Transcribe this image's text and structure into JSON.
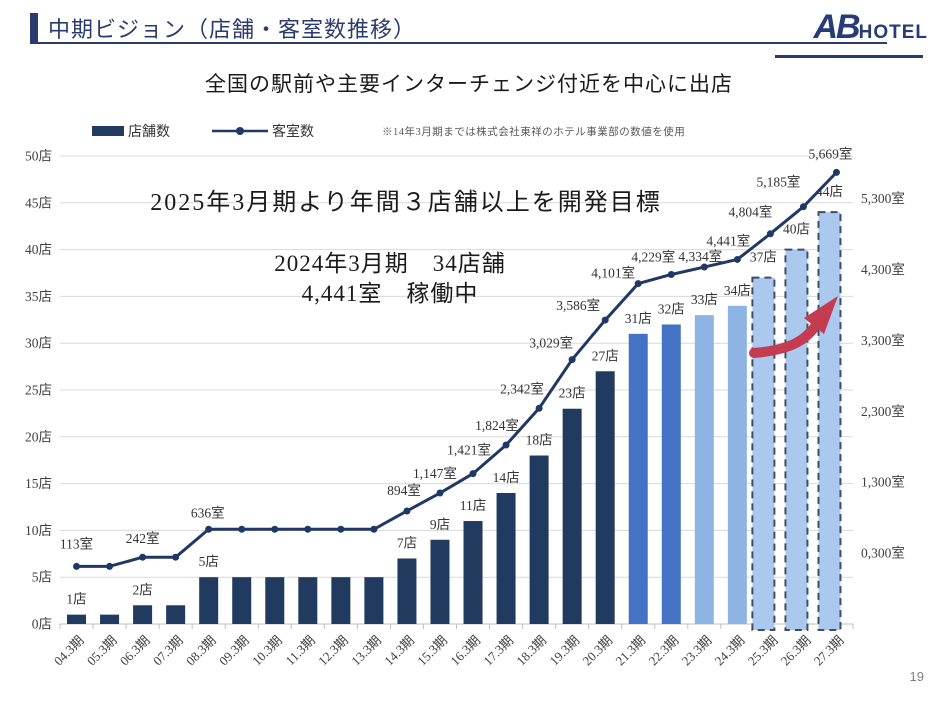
{
  "header": {
    "title": "中期ビジョン（店舗・客室数推移）",
    "logo_ab": "AB",
    "logo_hotel": "HOTEL"
  },
  "subtitle": "全国の駅前や主要インターチェンジ付近を中心に出店",
  "legend": {
    "bars_label": "店舗数",
    "line_label": "客室数",
    "note": "※14年3月期までは株式会社東祥のホテル事業部の数値を使用"
  },
  "annotations": {
    "goal": "2025年3月期より年間３店舗以上を開発目標",
    "current_line1": "2024年3月期　34店舗",
    "current_line2": "4,441室　稼働中"
  },
  "page_number": "19",
  "colors": {
    "navy": "#2A3B6E",
    "bar_dark": "#203A60",
    "bar_medium": "#4472C4",
    "bar_light": "#8EB4E3",
    "bar_forecast": "#ABC8EF",
    "forecast_border": "#3F4E63",
    "line": "#203864",
    "grid": "#D9D9D9",
    "axis_line": "#BFBFBF",
    "text": "#404040",
    "arrow_red": "#C33C50"
  },
  "chart_data": {
    "type": "bar+line",
    "title": "店舗・客室数推移",
    "categories": [
      "04.3期",
      "05.3期",
      "06.3期",
      "07.3期",
      "08.3期",
      "09.3期",
      "10.3期",
      "11.3期",
      "12.3期",
      "13.3期",
      "14.3期",
      "15.3期",
      "16.3期",
      "17.3期",
      "18.3期",
      "19.3期",
      "20.3期",
      "21.3期",
      "22.3期",
      "23.3期",
      "24.3期",
      "25.3期",
      "26.3期",
      "27.3期"
    ],
    "series": [
      {
        "name": "店舗数",
        "type": "bar",
        "unit": "店",
        "values": [
          1,
          1,
          2,
          2,
          5,
          5,
          5,
          5,
          5,
          5,
          7,
          9,
          11,
          14,
          18,
          23,
          27,
          31,
          32,
          33,
          34,
          37,
          40,
          44
        ],
        "labels": [
          "1店",
          "",
          "2店",
          "",
          "5店",
          "",
          "",
          "",
          "",
          "",
          "7店",
          "9店",
          "11店",
          "14店",
          "18店",
          "23店",
          "27店",
          "31店",
          "32店",
          "33店",
          "34店",
          "37店",
          "40店",
          "44店"
        ],
        "styles": [
          "dark",
          "dark",
          "dark",
          "dark",
          "dark",
          "dark",
          "dark",
          "dark",
          "dark",
          "dark",
          "dark",
          "dark",
          "dark",
          "dark",
          "dark",
          "dark",
          "dark",
          "medium",
          "medium",
          "light",
          "light",
          "forecast",
          "forecast",
          "forecast"
        ]
      },
      {
        "name": "客室数",
        "type": "line",
        "unit": "室",
        "values": [
          113,
          113,
          242,
          242,
          636,
          636,
          636,
          636,
          636,
          636,
          894,
          1147,
          1421,
          1824,
          2342,
          3029,
          3586,
          4101,
          4229,
          4334,
          4441,
          4804,
          5185,
          5669
        ],
        "labels": [
          "113室",
          "",
          "242室",
          "",
          "636室",
          "",
          "",
          "",
          "",
          "",
          "894室",
          "1,147室",
          "1,421室",
          "1,824室",
          "2,342室",
          "3,029室",
          "3,586室",
          "4,101室",
          "4,229室",
          "4,334室",
          "4,441室",
          "4,804室",
          "5,185室",
          "5,669室"
        ]
      }
    ],
    "left_axis": {
      "ticks": [
        "0店",
        "5店",
        "10店",
        "15店",
        "20店",
        "25店",
        "30店",
        "35店",
        "40店",
        "45店",
        "50店"
      ],
      "range": [
        0,
        50
      ],
      "grid": true
    },
    "right_axis": {
      "tick_values": [
        300,
        1300,
        2300,
        3300,
        4300,
        5300
      ],
      "tick_labels": [
        "0,300室",
        "1,300室",
        "2,300室",
        "3,300室",
        "4,300室",
        "5,300室"
      ],
      "range": [
        -700,
        5900
      ]
    },
    "legend_position": "top-left"
  }
}
